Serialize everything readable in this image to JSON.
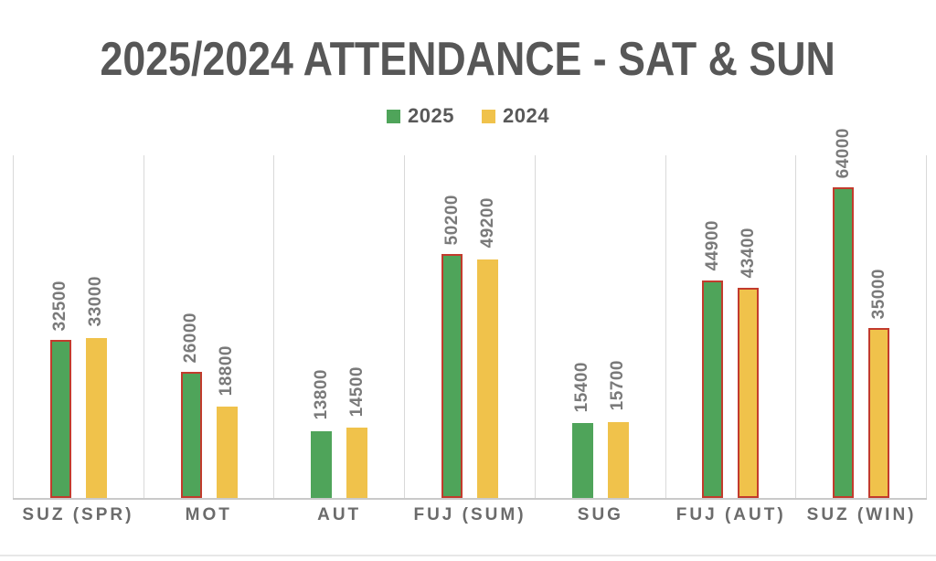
{
  "title": "2025/2024 ATTENDANCE - SAT & SUN",
  "colors": {
    "title_text": "#575757",
    "value_label_text": "#7a7a7a",
    "axis_label_text": "#6b6b6b",
    "gridline": "#d9d9d9",
    "axis_line": "#c9c9c9",
    "series_2025": "#4fa45a",
    "series_2024": "#f0c24b",
    "bar_outline": "#c23b2d"
  },
  "legend": {
    "position": "top-center",
    "items": [
      {
        "label": "2025",
        "color": "#4fa45a"
      },
      {
        "label": "2024",
        "color": "#f0c24b"
      }
    ]
  },
  "chart_data": {
    "type": "bar",
    "title": "2025/2024 ATTENDANCE - SAT & SUN",
    "xlabel": "",
    "ylabel": "",
    "categories": [
      "SUZ (SPR)",
      "MOT",
      "AUT",
      "FUJ (SUM)",
      "SUG",
      "FUJ (AUT)",
      "SUZ (WIN)"
    ],
    "series": [
      {
        "name": "2025",
        "color": "#4fa45a",
        "values": [
          32500,
          26000,
          13800,
          50200,
          15400,
          44900,
          64000
        ],
        "outlined": [
          true,
          true,
          false,
          true,
          false,
          true,
          true
        ]
      },
      {
        "name": "2024",
        "color": "#f0c24b",
        "values": [
          33000,
          18800,
          14500,
          49200,
          15700,
          43400,
          35000
        ],
        "outlined": [
          false,
          false,
          false,
          false,
          false,
          true,
          true
        ]
      }
    ],
    "outline_color": "#c23b2d",
    "ylim": [
      0,
      70600
    ],
    "y_axis_visible": false,
    "grid": "vertical category separators only",
    "legend_position": "top-center",
    "data_labels": "values rotated 90deg above each bar"
  }
}
